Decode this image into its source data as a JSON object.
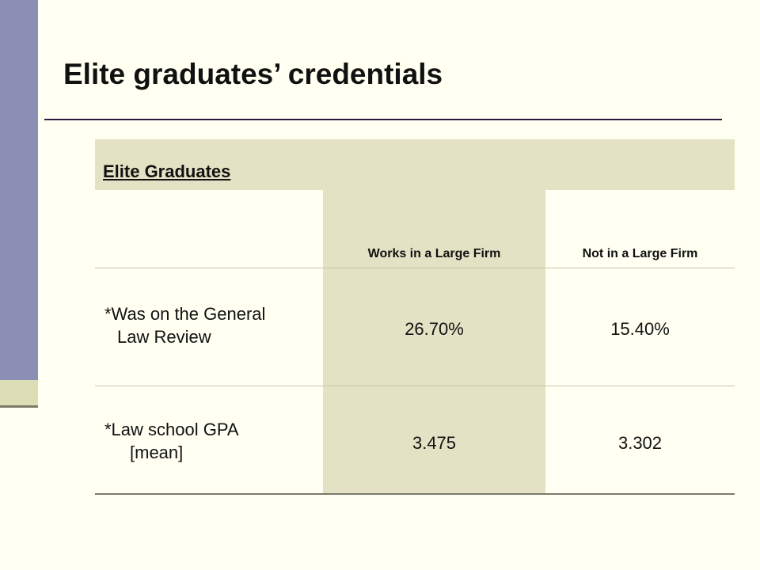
{
  "title": "Elite graduates’ credentials",
  "table": {
    "header": "Elite Graduates",
    "columns": [
      "Works in a Large Firm",
      "Not in a Large Firm"
    ],
    "rows": [
      {
        "label_line1": "*Was on the General",
        "label_line2": "Law Review",
        "values": [
          "26.70%",
          "15.40%"
        ]
      },
      {
        "label_line1": "*Law school GPA",
        "label_line2": "[mean]",
        "values": [
          "3.475",
          "3.302"
        ]
      }
    ]
  },
  "colors": {
    "background": "#FFFFF2",
    "left_bar": "#8B8FB3",
    "shade": "#E4E2C4",
    "title_rule": "#2B1A42"
  }
}
